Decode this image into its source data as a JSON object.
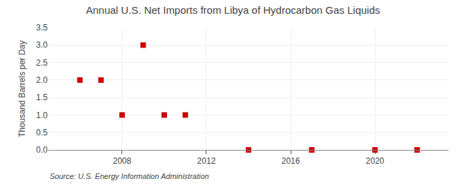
{
  "chart_data": {
    "type": "scatter",
    "title": "Annual U.S. Net Imports from Libya of Hydrocarbon Gas Liquids",
    "ylabel": "Thousand Barrels per Day",
    "annotations": [
      "Source: U.S. Energy Information Administration"
    ],
    "x": [
      2006,
      2007,
      2008,
      2009,
      2010,
      2011,
      2014,
      2017,
      2020,
      2022
    ],
    "values": [
      2.0,
      2.0,
      1.0,
      3.0,
      1.0,
      1.0,
      0.0,
      0.0,
      0.0,
      0.0
    ],
    "color": "#cc0000",
    "marker": "square",
    "xlim": [
      2004.5,
      2023.5
    ],
    "xticks": [
      2008,
      2012,
      2016,
      2020
    ],
    "ylim": [
      0.0,
      3.5
    ],
    "yticks": [
      {
        "value": 0.0,
        "label": "0.0"
      },
      {
        "value": 0.5,
        "label": "0.5"
      },
      {
        "value": 1.0,
        "label": "1.0"
      },
      {
        "value": 1.5,
        "label": "1.5"
      },
      {
        "value": 2.0,
        "label": "2.0"
      },
      {
        "value": 2.5,
        "label": "2.5"
      },
      {
        "value": 3.0,
        "label": "3.0"
      },
      {
        "value": 3.5,
        "label": "3.5"
      }
    ],
    "grid": true
  }
}
